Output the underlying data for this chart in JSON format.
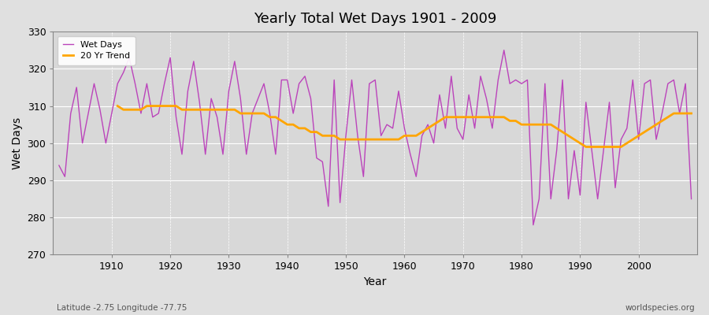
{
  "title": "Yearly Total Wet Days 1901 - 2009",
  "xlabel": "Year",
  "ylabel": "Wet Days",
  "subtitle": "Latitude -2.75 Longitude -77.75",
  "watermark": "worldspecies.org",
  "ylim": [
    270,
    330
  ],
  "yticks": [
    270,
    280,
    290,
    300,
    310,
    320,
    330
  ],
  "line_color": "#BB44BB",
  "trend_color": "#FFA500",
  "bg_color": "#E0E0E0",
  "plot_bg_color": "#D8D8D8",
  "years": [
    1901,
    1902,
    1903,
    1904,
    1905,
    1906,
    1907,
    1908,
    1909,
    1910,
    1911,
    1912,
    1913,
    1914,
    1915,
    1916,
    1917,
    1918,
    1919,
    1920,
    1921,
    1922,
    1923,
    1924,
    1925,
    1926,
    1927,
    1928,
    1929,
    1930,
    1931,
    1932,
    1933,
    1934,
    1935,
    1936,
    1937,
    1938,
    1939,
    1940,
    1941,
    1942,
    1943,
    1944,
    1945,
    1946,
    1947,
    1948,
    1949,
    1950,
    1951,
    1952,
    1953,
    1954,
    1955,
    1956,
    1957,
    1958,
    1959,
    1960,
    1961,
    1962,
    1963,
    1964,
    1965,
    1966,
    1967,
    1968,
    1969,
    1970,
    1971,
    1972,
    1973,
    1974,
    1975,
    1976,
    1977,
    1978,
    1979,
    1980,
    1981,
    1982,
    1983,
    1984,
    1985,
    1986,
    1987,
    1988,
    1989,
    1990,
    1991,
    1992,
    1993,
    1994,
    1995,
    1996,
    1997,
    1998,
    1999,
    2000,
    2001,
    2002,
    2003,
    2004,
    2005,
    2006,
    2007,
    2008,
    2009
  ],
  "wet_days": [
    294,
    291,
    308,
    315,
    300,
    308,
    316,
    309,
    300,
    308,
    316,
    319,
    323,
    316,
    308,
    316,
    307,
    308,
    316,
    323,
    307,
    297,
    314,
    322,
    311,
    297,
    312,
    307,
    297,
    314,
    322,
    312,
    297,
    308,
    312,
    316,
    308,
    297,
    317,
    317,
    308,
    316,
    318,
    312,
    296,
    295,
    283,
    317,
    284,
    302,
    317,
    302,
    291,
    316,
    317,
    302,
    305,
    304,
    314,
    304,
    297,
    291,
    302,
    305,
    300,
    313,
    304,
    318,
    304,
    301,
    313,
    304,
    318,
    312,
    304,
    317,
    325,
    316,
    317,
    316,
    317,
    278,
    285,
    316,
    285,
    298,
    317,
    285,
    298,
    286,
    311,
    298,
    285,
    298,
    311,
    288,
    301,
    304,
    317,
    301,
    316,
    317,
    301,
    308,
    316,
    317,
    308,
    316,
    285
  ],
  "trend": [
    null,
    null,
    null,
    null,
    null,
    null,
    null,
    null,
    null,
    null,
    310,
    309,
    309,
    309,
    309,
    310,
    310,
    310,
    310,
    310,
    310,
    309,
    309,
    309,
    309,
    309,
    309,
    309,
    309,
    309,
    309,
    308,
    308,
    308,
    308,
    308,
    307,
    307,
    306,
    305,
    305,
    304,
    304,
    303,
    303,
    302,
    302,
    302,
    301,
    301,
    301,
    301,
    301,
    301,
    301,
    301,
    301,
    301,
    301,
    302,
    302,
    302,
    303,
    304,
    305,
    306,
    307,
    307,
    307,
    307,
    307,
    307,
    307,
    307,
    307,
    307,
    307,
    306,
    306,
    305,
    305,
    305,
    305,
    305,
    305,
    304,
    303,
    302,
    301,
    300,
    299,
    299,
    299,
    299,
    299,
    299,
    299,
    300,
    301,
    302,
    303,
    304,
    305,
    306,
    307,
    308,
    308,
    308,
    308
  ]
}
